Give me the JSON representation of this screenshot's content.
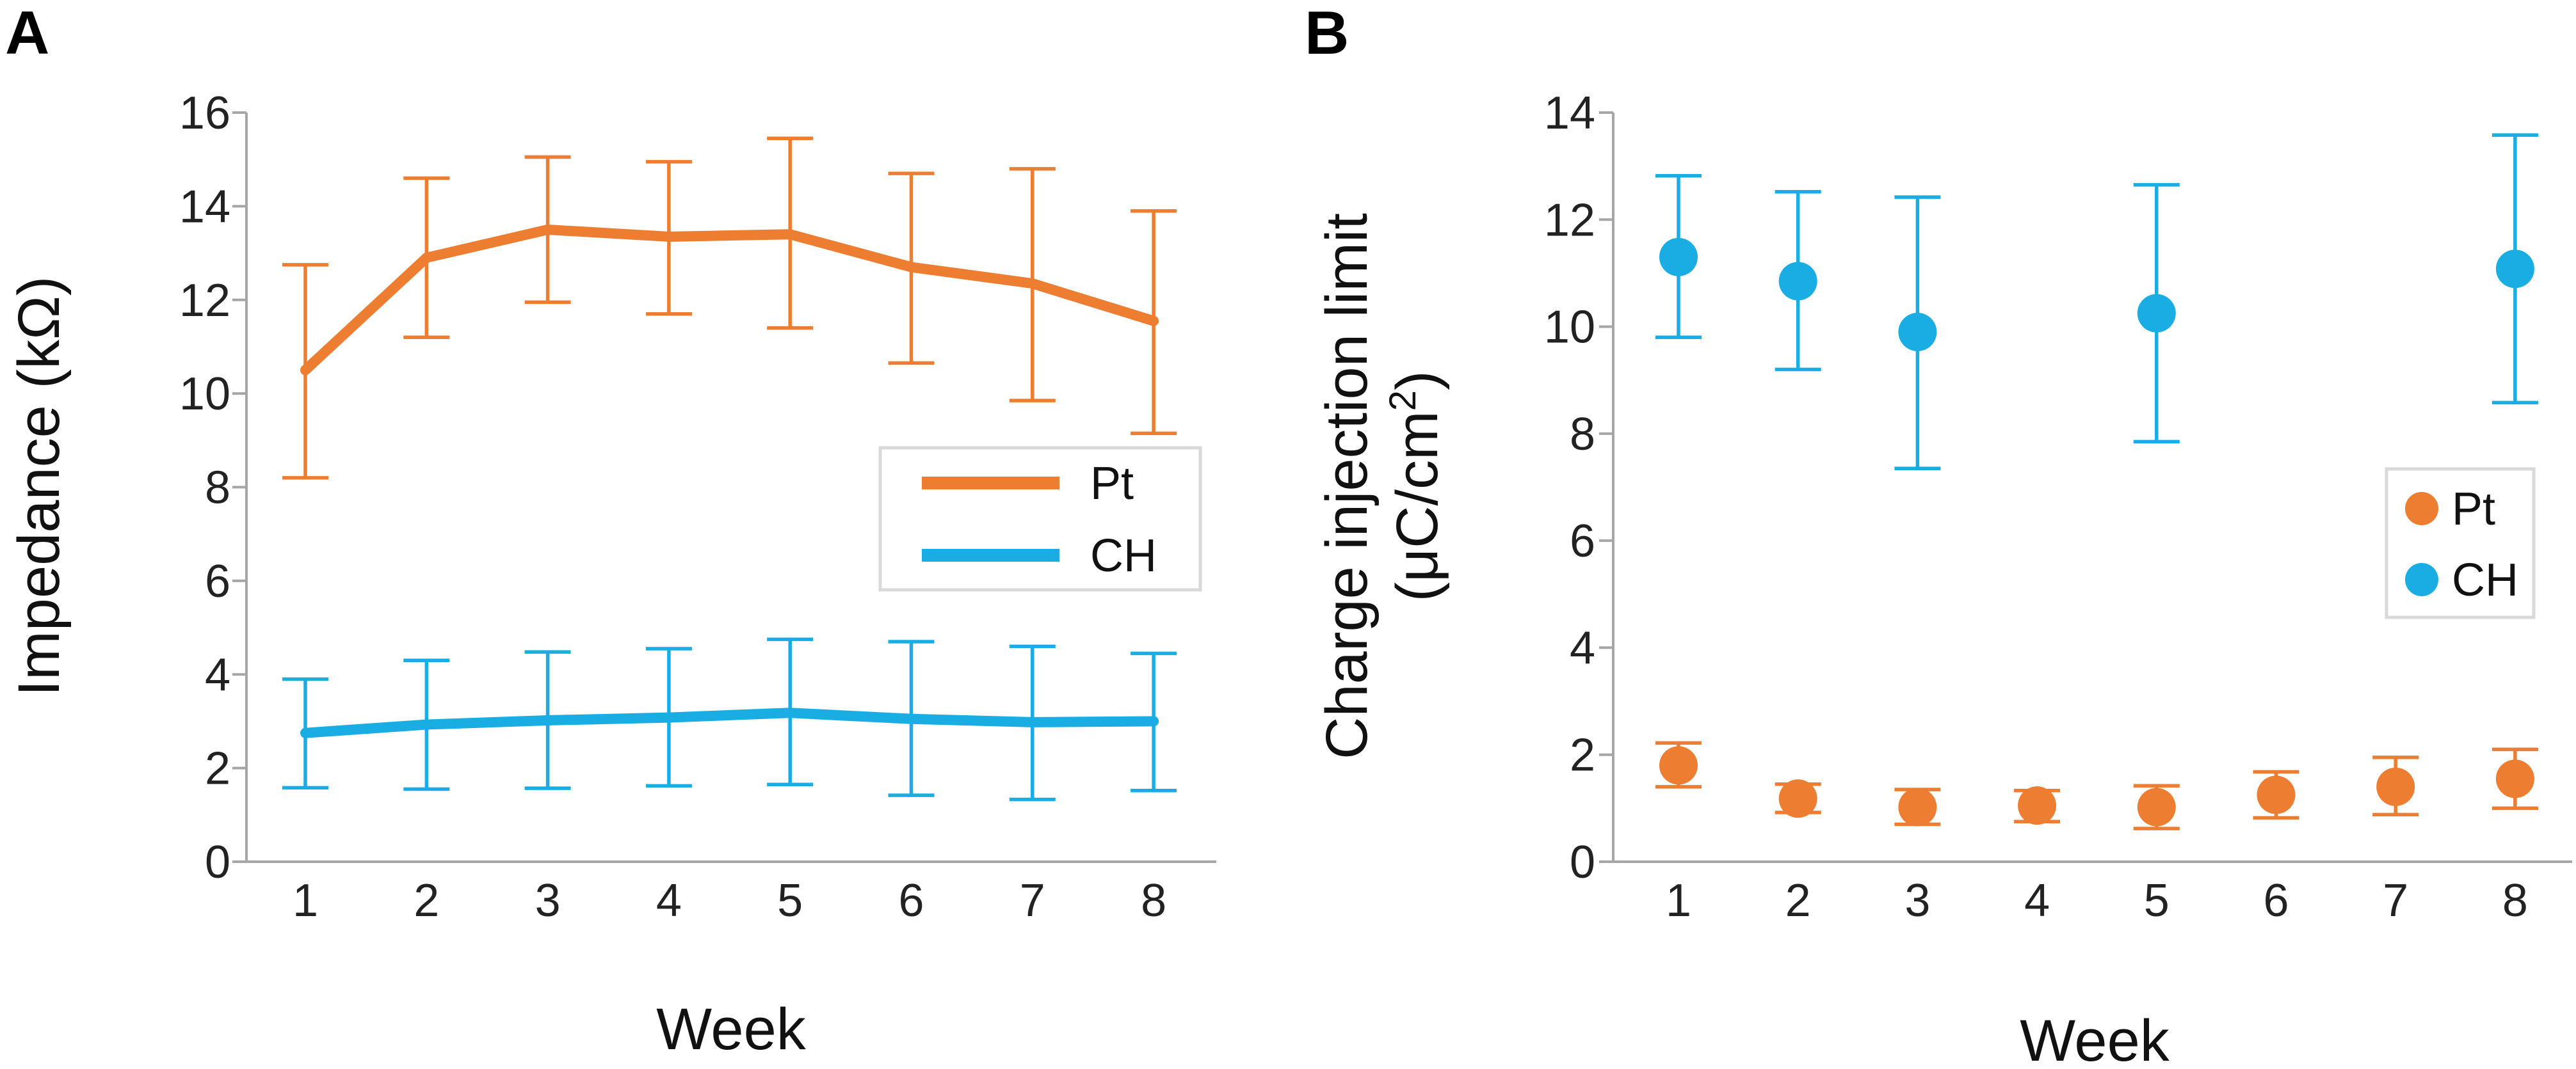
{
  "chart_data": [
    {
      "panel": "A",
      "type": "line",
      "xlabel": "Week",
      "ylabel": "Impedance (kΩ)",
      "categories": [
        1,
        2,
        3,
        4,
        5,
        6,
        7,
        8
      ],
      "ylim": [
        0,
        16
      ],
      "yticks": [
        0,
        2,
        4,
        6,
        8,
        10,
        12,
        14,
        16
      ],
      "legend_position": "right-middle",
      "series": [
        {
          "name": "Pt",
          "color": "#ED7D31",
          "values": [
            10.5,
            12.9,
            13.5,
            13.35,
            13.4,
            12.7,
            12.35,
            11.55
          ],
          "lower": [
            8.2,
            11.2,
            11.95,
            11.7,
            11.4,
            10.65,
            9.85,
            9.15
          ],
          "upper": [
            12.75,
            14.6,
            15.05,
            14.95,
            15.45,
            14.7,
            14.8,
            13.9
          ]
        },
        {
          "name": "CH",
          "color": "#1AADE4",
          "values": [
            2.75,
            2.93,
            3.02,
            3.08,
            3.18,
            3.05,
            2.98,
            3.0
          ],
          "lower": [
            1.58,
            1.55,
            1.57,
            1.62,
            1.65,
            1.42,
            1.33,
            1.52
          ],
          "upper": [
            3.9,
            4.3,
            4.48,
            4.55,
            4.75,
            4.7,
            4.6,
            4.45
          ]
        }
      ]
    },
    {
      "panel": "B",
      "type": "scatter",
      "xlabel": "Week",
      "ylabel_line1": "Charge injection limit",
      "ylabel_line2": "(μC/cm",
      "ylabel_sup": "2",
      "ylabel_close": ")",
      "categories": [
        1,
        2,
        3,
        4,
        5,
        6,
        7,
        8
      ],
      "ylim": [
        0,
        14
      ],
      "yticks": [
        0,
        2,
        4,
        6,
        8,
        10,
        12,
        14
      ],
      "legend_position": "right-middle",
      "series": [
        {
          "name": "Pt",
          "color": "#ED7D31",
          "x": [
            1,
            2,
            3,
            4,
            5,
            6,
            7,
            8
          ],
          "values": [
            1.8,
            1.18,
            1.02,
            1.05,
            1.02,
            1.25,
            1.4,
            1.55
          ],
          "lower": [
            1.4,
            0.92,
            0.7,
            0.75,
            0.62,
            0.82,
            0.88,
            1.0
          ],
          "upper": [
            2.22,
            1.45,
            1.35,
            1.33,
            1.42,
            1.68,
            1.95,
            2.1
          ]
        },
        {
          "name": "CH",
          "color": "#1AADE4",
          "x": [
            1,
            2,
            3,
            5,
            8
          ],
          "values": [
            11.3,
            10.85,
            9.9,
            10.25,
            11.08
          ],
          "lower": [
            9.8,
            9.2,
            7.35,
            7.85,
            8.58
          ],
          "upper": [
            12.82,
            12.52,
            12.42,
            12.65,
            13.58
          ]
        }
      ]
    }
  ]
}
